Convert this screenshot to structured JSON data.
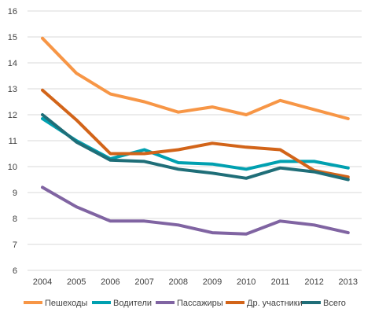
{
  "chart_data": {
    "type": "line",
    "title": "",
    "xlabel": "",
    "ylabel": "",
    "x": [
      "2004",
      "2005",
      "2006",
      "2007",
      "2008",
      "2009",
      "2010",
      "2011",
      "2012",
      "2013"
    ],
    "ylim": [
      6,
      16
    ],
    "yticks": [
      6,
      7,
      8,
      9,
      10,
      11,
      12,
      13,
      14,
      15,
      16
    ],
    "grid": true,
    "legend_position": "bottom",
    "series": [
      {
        "name": "Пешеходы",
        "color": "#F79646",
        "values": [
          14.95,
          13.6,
          12.8,
          12.5,
          12.1,
          12.3,
          12.0,
          12.55,
          12.2,
          11.85
        ]
      },
      {
        "name": "Водители",
        "color": "#00A0B0",
        "values": [
          11.85,
          11.0,
          10.3,
          10.65,
          10.15,
          10.1,
          9.9,
          10.2,
          10.2,
          9.95
        ]
      },
      {
        "name": "Пассажиры",
        "color": "#8064A2",
        "values": [
          9.2,
          8.45,
          7.9,
          7.9,
          7.75,
          7.45,
          7.4,
          7.9,
          7.75,
          7.45
        ]
      },
      {
        "name": "Др. участники",
        "color": "#D26419",
        "values": [
          12.95,
          11.8,
          10.5,
          10.5,
          10.65,
          10.9,
          10.75,
          10.65,
          9.85,
          9.6
        ]
      },
      {
        "name": "Всего",
        "color": "#1F6E78",
        "values": [
          12.0,
          10.95,
          10.25,
          10.2,
          9.9,
          9.75,
          9.55,
          9.95,
          9.8,
          9.5
        ]
      }
    ]
  }
}
